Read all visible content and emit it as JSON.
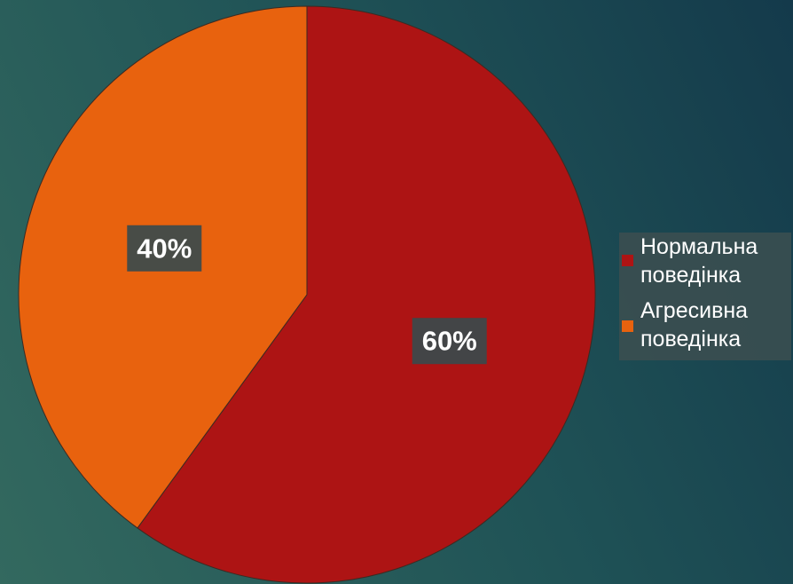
{
  "chart_data": {
    "type": "pie",
    "slices": [
      {
        "label": "Нормальна поведінка",
        "value": 60,
        "data_label": "60%",
        "color": "#ad1414"
      },
      {
        "label": "Агресивна поведінка",
        "value": 40,
        "data_label": "40%",
        "color": "#e8620e"
      }
    ],
    "legend": {
      "position": "right",
      "entries": [
        "Нормальна поведінка",
        "Агресивна поведінка"
      ]
    },
    "start_angle": "12 o'clock",
    "direction": "clockwise"
  }
}
